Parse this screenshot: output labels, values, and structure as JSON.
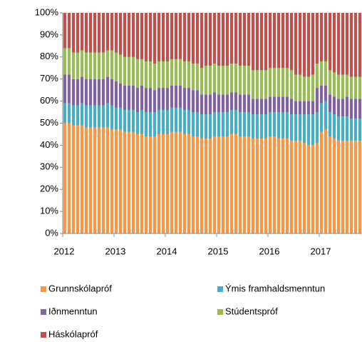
{
  "chart_data": {
    "type": "stacked_bar",
    "legend": "bottom",
    "grid": false,
    "categories": [
      "2012",
      null,
      null,
      null,
      null,
      null,
      null,
      null,
      null,
      null,
      null,
      null,
      "2013",
      null,
      null,
      null,
      null,
      null,
      null,
      null,
      null,
      null,
      null,
      null,
      "2014",
      null,
      null,
      null,
      null,
      null,
      null,
      null,
      null,
      null,
      null,
      null,
      "2015",
      null,
      null,
      null,
      null,
      null,
      null,
      null,
      null,
      null,
      null,
      null,
      "2016",
      null,
      null,
      null,
      null,
      null,
      null,
      null,
      null,
      null,
      null,
      null,
      "2017",
      null,
      null,
      null,
      null,
      null,
      null,
      null,
      null,
      null
    ],
    "ylim": [
      0,
      100
    ],
    "yticks": [
      {
        "value": 0,
        "label": "0%"
      },
      {
        "value": 10,
        "label": "10%"
      },
      {
        "value": 20,
        "label": "20%"
      },
      {
        "value": 30,
        "label": "30%"
      },
      {
        "value": 40,
        "label": "40%"
      },
      {
        "value": 50,
        "label": "50%"
      },
      {
        "value": 60,
        "label": "60%"
      },
      {
        "value": 70,
        "label": "70%"
      },
      {
        "value": 80,
        "label": "80%"
      },
      {
        "value": 90,
        "label": "90%"
      },
      {
        "value": 100,
        "label": "100%"
      }
    ],
    "series": [
      {
        "name": "Grunnskólapróf",
        "color": "#f79646",
        "values": [
          50,
          50,
          49,
          49,
          49,
          48,
          48,
          48,
          48,
          48,
          48,
          47,
          47,
          47,
          46,
          46,
          46,
          45,
          45,
          44,
          44,
          44,
          45,
          45,
          45,
          46,
          46,
          46,
          45,
          45,
          44,
          44,
          43,
          43,
          43,
          44,
          44,
          44,
          44,
          45,
          45,
          44,
          44,
          44,
          43,
          43,
          43,
          43,
          44,
          44,
          43,
          43,
          43,
          42,
          42,
          42,
          41,
          40,
          40,
          41,
          46,
          47,
          44,
          43,
          42,
          42,
          42,
          42,
          42,
          42
        ]
      },
      {
        "name": "Ýmis framhaldsmenntun",
        "color": "#4bacc6",
        "values": [
          9,
          9,
          9,
          9,
          10,
          10,
          10,
          10,
          10,
          10,
          11,
          11,
          10,
          10,
          10,
          10,
          10,
          10,
          11,
          11,
          11,
          11,
          11,
          11,
          11,
          11,
          11,
          11,
          11,
          11,
          11,
          11,
          11,
          11,
          11,
          11,
          11,
          11,
          11,
          11,
          11,
          11,
          11,
          11,
          11,
          11,
          11,
          11,
          11,
          11,
          12,
          12,
          12,
          12,
          12,
          12,
          13,
          14,
          14,
          14,
          13,
          13,
          11,
          11,
          11,
          11,
          11,
          10,
          10,
          10
        ]
      },
      {
        "name": "Iðnmenntun",
        "color": "#8064a2",
        "values": [
          13,
          13,
          12,
          12,
          12,
          12,
          12,
          12,
          12,
          12,
          12,
          12,
          12,
          11,
          11,
          11,
          11,
          11,
          11,
          11,
          11,
          10,
          10,
          10,
          10,
          10,
          10,
          10,
          10,
          10,
          10,
          10,
          9,
          9,
          9,
          9,
          8,
          8,
          8,
          8,
          8,
          8,
          8,
          8,
          7,
          7,
          7,
          7,
          7,
          7,
          7,
          7,
          7,
          7,
          6,
          6,
          6,
          6,
          6,
          11,
          8,
          7,
          8,
          8,
          8,
          8,
          9,
          9,
          9,
          9
        ]
      },
      {
        "name": "Stúdentspróf",
        "color": "#9bbb59",
        "values": [
          12,
          12,
          12,
          12,
          12,
          12,
          12,
          12,
          12,
          12,
          12,
          13,
          13,
          13,
          13,
          13,
          13,
          13,
          12,
          12,
          12,
          12,
          12,
          12,
          12,
          12,
          12,
          12,
          12,
          12,
          12,
          12,
          12,
          13,
          13,
          13,
          13,
          13,
          13,
          13,
          13,
          13,
          13,
          13,
          13,
          13,
          13,
          13,
          13,
          13,
          13,
          13,
          13,
          13,
          12,
          12,
          11,
          11,
          12,
          11,
          11,
          11,
          11,
          11,
          11,
          11,
          10,
          10,
          10,
          10
        ]
      },
      {
        "name": "Háskólapróf",
        "color": "#c0504d",
        "values": [
          16,
          16,
          18,
          18,
          17,
          18,
          18,
          18,
          18,
          18,
          17,
          17,
          18,
          19,
          20,
          20,
          20,
          21,
          21,
          22,
          22,
          23,
          22,
          22,
          22,
          21,
          21,
          21,
          22,
          22,
          23,
          23,
          25,
          24,
          24,
          23,
          24,
          24,
          24,
          23,
          23,
          24,
          24,
          24,
          26,
          26,
          26,
          26,
          25,
          25,
          25,
          25,
          25,
          26,
          28,
          28,
          29,
          29,
          28,
          23,
          22,
          22,
          26,
          27,
          28,
          28,
          28,
          29,
          29,
          29
        ]
      }
    ]
  }
}
